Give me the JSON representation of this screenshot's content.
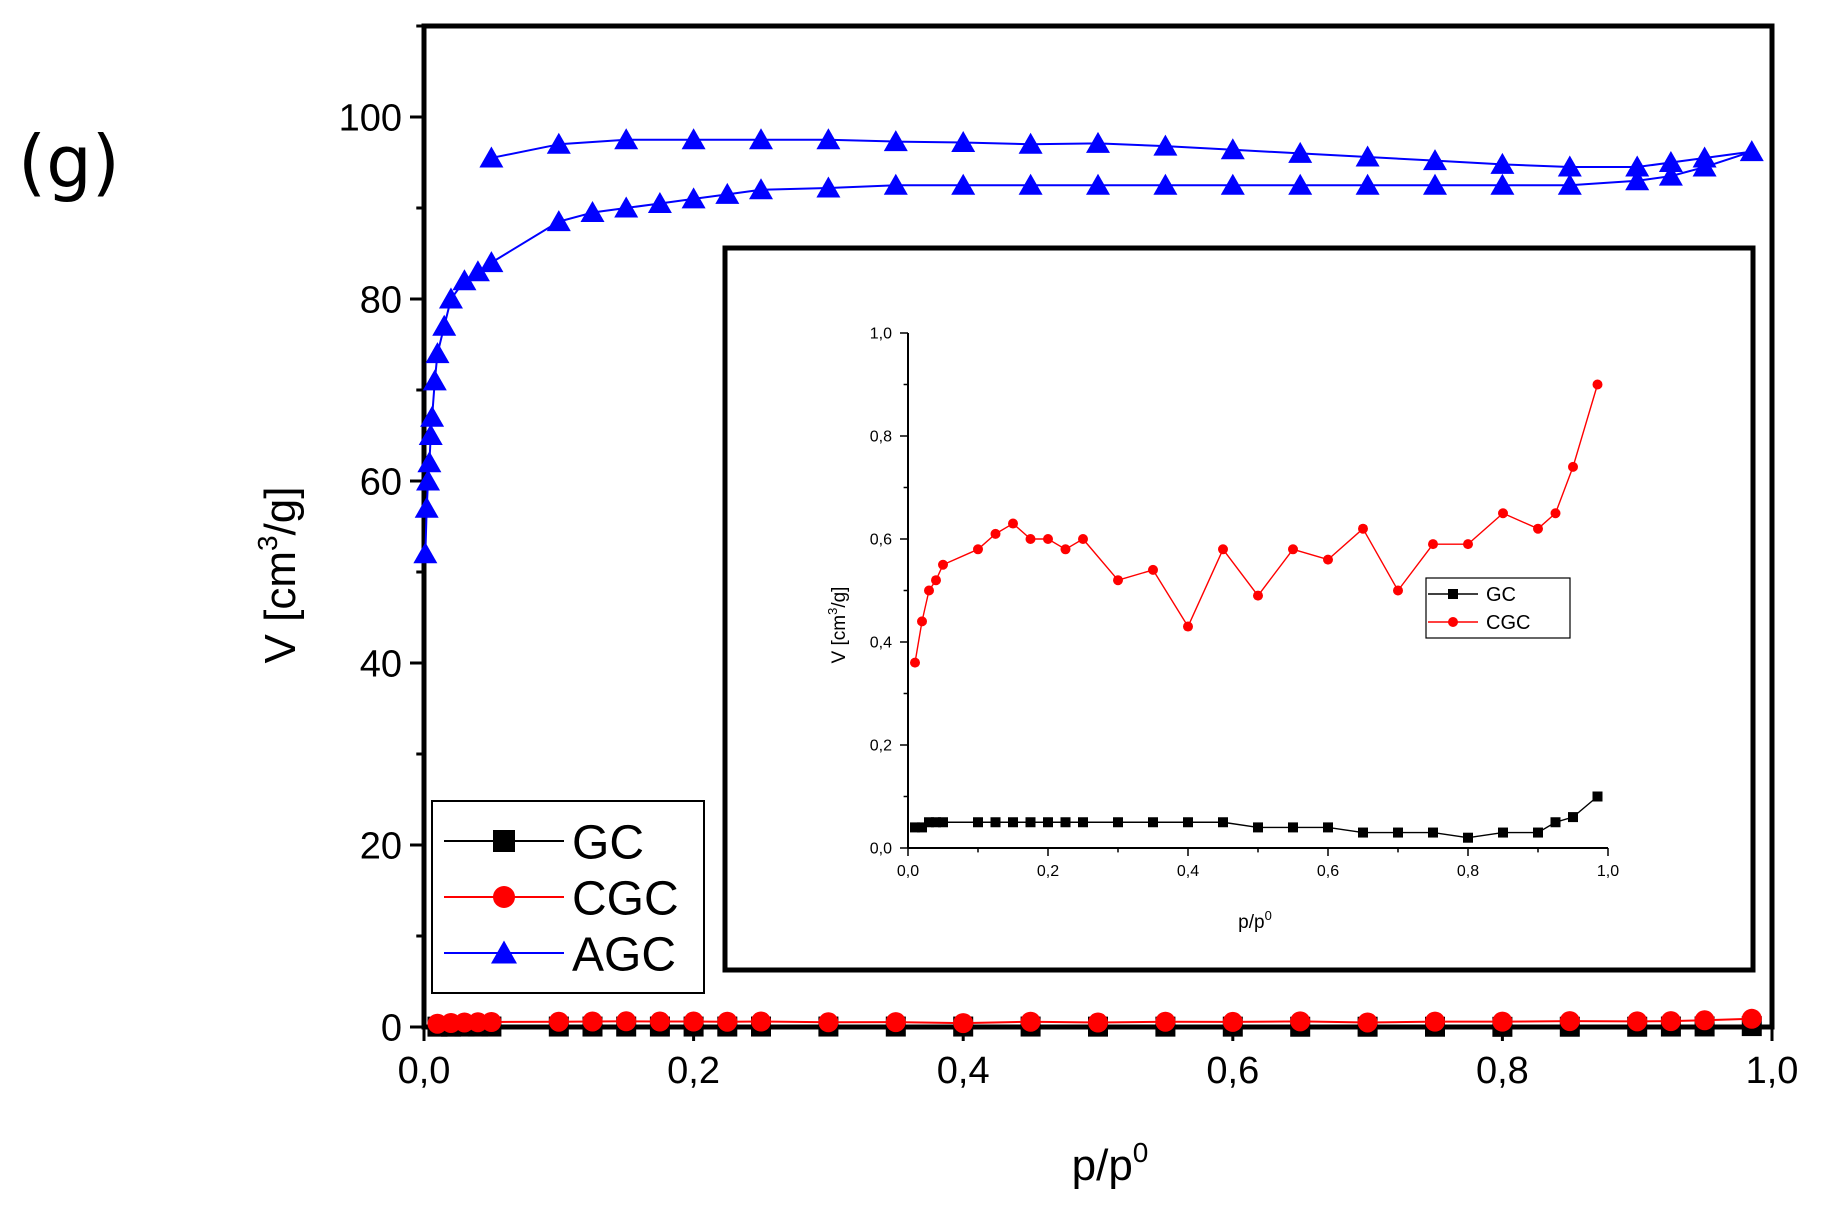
{
  "panel_label": "(g)",
  "chart_data": [
    {
      "id": "main",
      "type": "line",
      "xlabel": "p/p",
      "xlabel_sup": "0",
      "ylabel_pre": "V [cm",
      "ylabel_sup": "3",
      "ylabel_post": "/g]",
      "xlim": [
        0,
        1
      ],
      "ylim": [
        0,
        110
      ],
      "xticks": [
        0,
        0.2,
        0.4,
        0.6,
        0.8,
        1.0
      ],
      "xtick_labels": [
        "0,0",
        "0,2",
        "0,4",
        "0,6",
        "0,8",
        "1,0"
      ],
      "yticks": [
        0,
        20,
        40,
        60,
        80,
        100
      ],
      "ytick_labels": [
        "0",
        "20",
        "40",
        "60",
        "80",
        "100"
      ],
      "legend": [
        "GC",
        "CGC",
        "AGC"
      ],
      "legend_position": "bottom-left",
      "series": [
        {
          "name": "GC",
          "color": "#000000",
          "marker": "square",
          "x": [
            0.01,
            0.02,
            0.03,
            0.04,
            0.05,
            0.1,
            0.125,
            0.15,
            0.175,
            0.2,
            0.225,
            0.25,
            0.3,
            0.35,
            0.4,
            0.45,
            0.5,
            0.55,
            0.6,
            0.65,
            0.7,
            0.75,
            0.8,
            0.85,
            0.9,
            0.925,
            0.95,
            0.985
          ],
          "y": [
            0.04,
            0.04,
            0.05,
            0.05,
            0.05,
            0.05,
            0.05,
            0.05,
            0.05,
            0.05,
            0.05,
            0.05,
            0.05,
            0.05,
            0.05,
            0.05,
            0.04,
            0.04,
            0.04,
            0.03,
            0.03,
            0.03,
            0.02,
            0.03,
            0.03,
            0.05,
            0.06,
            0.1
          ]
        },
        {
          "name": "CGC",
          "color": "#ff0000",
          "marker": "circle",
          "x": [
            0.01,
            0.02,
            0.03,
            0.04,
            0.05,
            0.1,
            0.125,
            0.15,
            0.175,
            0.2,
            0.225,
            0.25,
            0.3,
            0.35,
            0.4,
            0.45,
            0.5,
            0.55,
            0.6,
            0.65,
            0.7,
            0.75,
            0.8,
            0.85,
            0.9,
            0.925,
            0.95,
            0.985
          ],
          "y": [
            0.36,
            0.44,
            0.5,
            0.52,
            0.55,
            0.58,
            0.61,
            0.63,
            0.6,
            0.6,
            0.58,
            0.6,
            0.52,
            0.54,
            0.43,
            0.58,
            0.49,
            0.58,
            0.56,
            0.62,
            0.5,
            0.59,
            0.59,
            0.65,
            0.62,
            0.65,
            0.74,
            0.9
          ]
        },
        {
          "name": "AGC",
          "color": "#0000ff",
          "marker": "triangle",
          "x": [
            0.001,
            0.002,
            0.003,
            0.004,
            0.005,
            0.006,
            0.008,
            0.01,
            0.015,
            0.02,
            0.03,
            0.04,
            0.05,
            0.1,
            0.125,
            0.15,
            0.175,
            0.2,
            0.225,
            0.25,
            0.3,
            0.35,
            0.4,
            0.45,
            0.5,
            0.55,
            0.6,
            0.65,
            0.7,
            0.75,
            0.8,
            0.85,
            0.9,
            0.925,
            0.95,
            0.985,
            0.95,
            0.925,
            0.9,
            0.85,
            0.8,
            0.75,
            0.7,
            0.65,
            0.6,
            0.55,
            0.5,
            0.45,
            0.4,
            0.35,
            0.3,
            0.25,
            0.2,
            0.15,
            0.1,
            0.05
          ],
          "y": [
            52,
            57,
            60,
            62,
            65,
            67,
            71,
            74,
            77,
            80,
            82,
            83,
            84,
            88.5,
            89.5,
            90,
            90.5,
            91,
            91.5,
            92,
            92.2,
            92.5,
            92.5,
            92.5,
            92.5,
            92.5,
            92.5,
            92.5,
            92.5,
            92.5,
            92.5,
            92.5,
            93,
            93.5,
            94.5,
            96.2,
            95.5,
            95,
            94.5,
            94.5,
            94.8,
            95.2,
            95.6,
            96,
            96.4,
            96.8,
            97.1,
            97,
            97.2,
            97.3,
            97.5,
            97.5,
            97.5,
            97.5,
            97,
            95.5
          ]
        }
      ]
    },
    {
      "id": "inset",
      "type": "line",
      "xlabel": "p/p",
      "xlabel_sup": "0",
      "ylabel_pre": "V [cm",
      "ylabel_sup": "3",
      "ylabel_post": "/g]",
      "xlim": [
        0,
        1
      ],
      "ylim": [
        0,
        1
      ],
      "xticks": [
        0,
        0.2,
        0.4,
        0.6,
        0.8,
        1.0
      ],
      "xtick_labels": [
        "0,0",
        "0,2",
        "0,4",
        "0,6",
        "0,8",
        "1,0"
      ],
      "yticks": [
        0,
        0.2,
        0.4,
        0.6,
        0.8,
        1.0
      ],
      "ytick_labels": [
        "0,0",
        "0,2",
        "0,4",
        "0,6",
        "0,8",
        "1,0"
      ],
      "legend": [
        "GC",
        "CGC"
      ],
      "legend_position": "center-right",
      "series_ref": [
        "GC",
        "CGC"
      ]
    }
  ]
}
